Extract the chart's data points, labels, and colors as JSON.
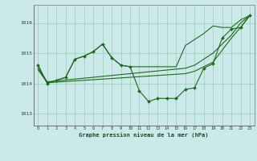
{
  "background_color": "#cce9e9",
  "grid_color": "#99ccbb",
  "line_color": "#1a6b1a",
  "marker_color": "#1a6b1a",
  "xlabel": "Graphe pression niveau de la mer (hPa)",
  "xlabel_color": "#1a4d1a",
  "ylabel_ticks": [
    1013,
    1014,
    1015,
    1016
  ],
  "xlim": [
    -0.5,
    23.5
  ],
  "ylim": [
    1012.6,
    1016.6
  ],
  "x_ticks": [
    0,
    1,
    2,
    3,
    4,
    5,
    6,
    7,
    8,
    9,
    10,
    11,
    12,
    13,
    14,
    15,
    16,
    17,
    18,
    19,
    20,
    21,
    22,
    23
  ],
  "main_y": [
    1014.6,
    1014.0,
    1014.1,
    1014.2,
    1014.8,
    1014.9,
    1015.05,
    1015.3,
    1014.85,
    1014.6,
    1014.55,
    1013.75,
    1013.4,
    1013.5,
    1013.5,
    1013.5,
    1013.8,
    1013.85,
    1014.5,
    1014.65,
    1015.5,
    1015.8,
    1015.85,
    1016.25
  ],
  "upper_y": [
    1014.6,
    1014.0,
    1014.1,
    1014.2,
    1014.8,
    1014.9,
    1015.05,
    1015.3,
    1014.85,
    1014.6,
    1014.55,
    1014.55,
    1014.55,
    1014.55,
    1014.55,
    1014.55,
    1015.25,
    1015.45,
    1015.65,
    1015.9,
    1015.85,
    1015.85,
    1016.1,
    1016.25
  ],
  "line1_y": [
    1014.5,
    1014.05,
    1014.08,
    1014.11,
    1014.14,
    1014.17,
    1014.2,
    1014.23,
    1014.26,
    1014.29,
    1014.32,
    1014.35,
    1014.38,
    1014.41,
    1014.44,
    1014.47,
    1014.5,
    1014.6,
    1014.8,
    1015.0,
    1015.3,
    1015.6,
    1016.0,
    1016.25
  ],
  "line2_y": [
    1014.45,
    1014.02,
    1014.04,
    1014.06,
    1014.08,
    1014.1,
    1014.12,
    1014.14,
    1014.16,
    1014.18,
    1014.2,
    1014.22,
    1014.24,
    1014.26,
    1014.28,
    1014.3,
    1014.32,
    1014.4,
    1014.55,
    1014.7,
    1015.1,
    1015.5,
    1015.85,
    1016.25
  ]
}
